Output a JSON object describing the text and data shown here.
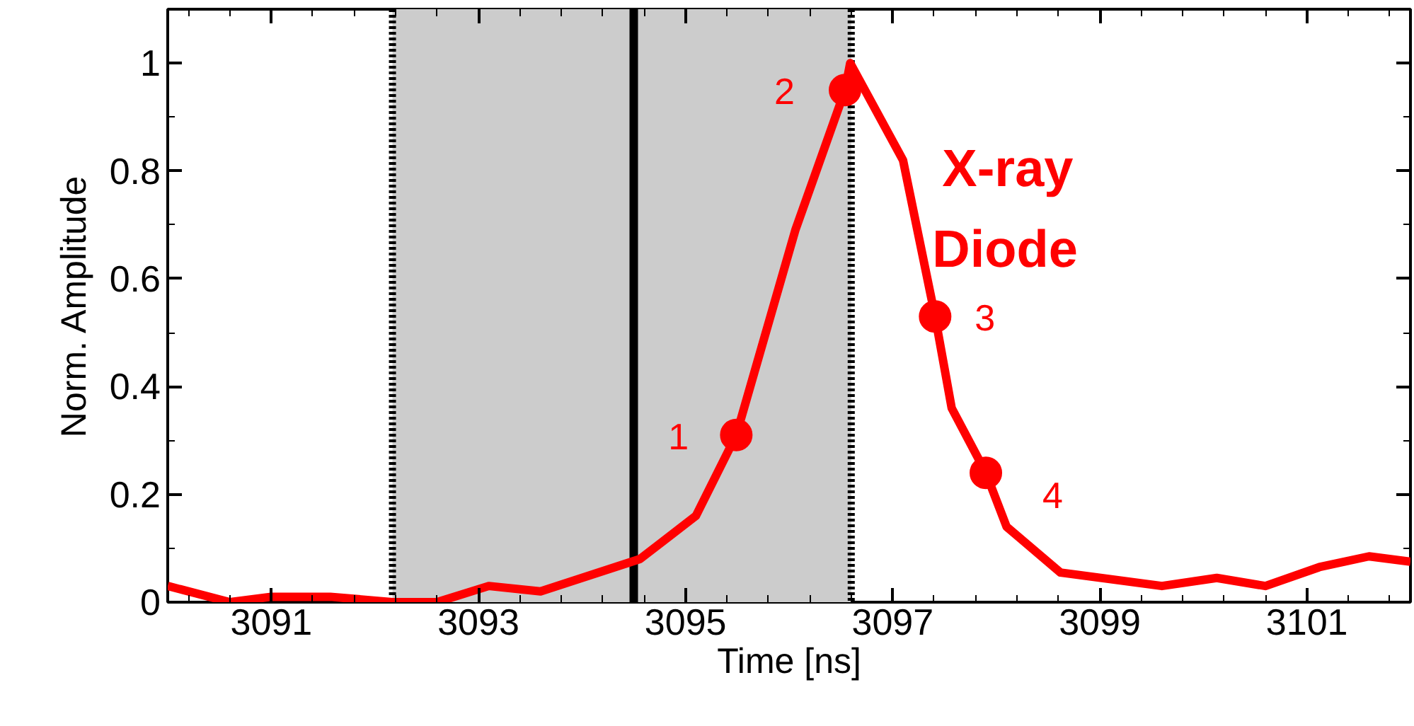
{
  "chart_data": {
    "type": "line",
    "xlabel": "Time [ns]",
    "ylabel": "Norm. Amplitude",
    "xlim": [
      3090,
      3102
    ],
    "ylim": [
      0,
      1.1
    ],
    "xticks": [
      3091,
      3093,
      3095,
      3097,
      3099,
      3101
    ],
    "yticks": [
      0,
      0.2,
      0.4,
      0.6,
      0.8,
      1
    ],
    "grid": false,
    "line_style": "solid",
    "marker": "none",
    "bands": [
      {
        "axis": "x",
        "from": 3092.17,
        "to": 3096.6,
        "color": "#cccccc"
      }
    ],
    "ref_lines": [
      {
        "axis": "x",
        "value": 3092.17,
        "line_style": "dotted",
        "color": "#000000"
      },
      {
        "axis": "x",
        "value": 3096.6,
        "line_style": "dotted",
        "color": "#000000"
      },
      {
        "axis": "x",
        "value": 3094.5,
        "line_style": "solid",
        "color": "#000000"
      }
    ],
    "series": [
      {
        "name": "X-ray Diode",
        "color": "#ff0000",
        "x": [
          3090.0,
          3090.6,
          3091.0,
          3091.57,
          3092.17,
          3092.6,
          3093.1,
          3093.6,
          3094.56,
          3095.1,
          3095.49,
          3096.06,
          3096.54,
          3096.59,
          3097.1,
          3097.41,
          3097.57,
          3097.9,
          3098.1,
          3098.62,
          3099.6,
          3100.13,
          3100.6,
          3101.12,
          3101.6,
          3102.0
        ],
        "values": [
          0.03,
          0.0,
          0.01,
          0.01,
          0.0,
          0.0,
          0.03,
          0.02,
          0.08,
          0.16,
          0.31,
          0.69,
          0.95,
          1.0,
          0.82,
          0.53,
          0.36,
          0.24,
          0.14,
          0.055,
          0.03,
          0.045,
          0.03,
          0.065,
          0.085,
          0.075
        ]
      },
      {
        "type": "scatter",
        "marker": "circle",
        "color": "#ff0000",
        "x": [
          3095.49,
          3096.54,
          3097.41,
          3097.9
        ],
        "values": [
          0.31,
          0.95,
          0.53,
          0.24
        ]
      }
    ],
    "annotations": [
      {
        "text": "1",
        "x": 3095.49,
        "y": 0.31
      },
      {
        "text": "2",
        "x": 3096.54,
        "y": 0.95
      },
      {
        "text": "3",
        "x": 3097.41,
        "y": 0.53
      },
      {
        "text": "4",
        "x": 3097.9,
        "y": 0.24
      }
    ]
  }
}
